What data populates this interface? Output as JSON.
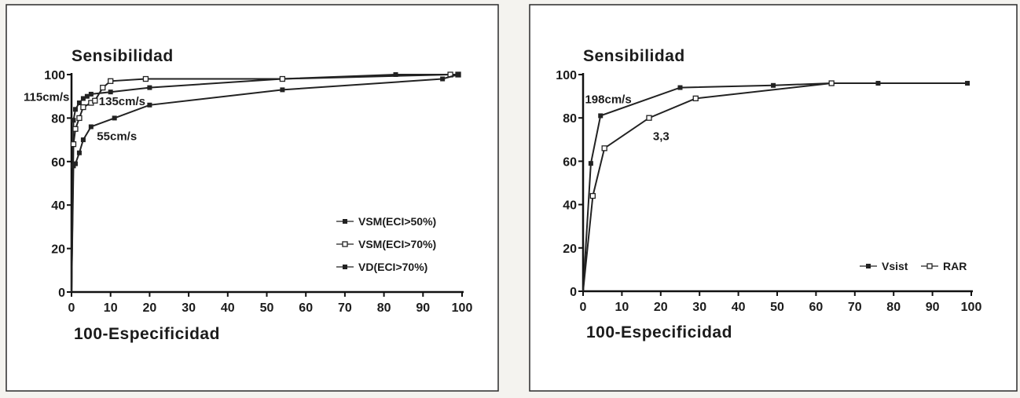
{
  "chart_data": [
    {
      "type": "line",
      "ylabel": "Sensibilidad",
      "xlabel": "100-Especificidad",
      "xlim": [
        0,
        100
      ],
      "ylim": [
        0,
        100
      ],
      "xticks": [
        0,
        10,
        20,
        30,
        40,
        50,
        60,
        70,
        80,
        90,
        100
      ],
      "yticks": [
        0,
        20,
        40,
        60,
        80,
        100
      ],
      "legend_position": "bottom-right",
      "series": [
        {
          "name": "VSM(ECI>50%)",
          "marker": "filled",
          "points": [
            [
              0,
              0
            ],
            [
              0.5,
              79
            ],
            [
              1,
              84
            ],
            [
              2,
              87
            ],
            [
              3,
              89
            ],
            [
              4,
              90
            ],
            [
              5,
              91
            ],
            [
              10,
              92
            ],
            [
              20,
              94
            ],
            [
              54,
              98
            ],
            [
              83,
              100
            ],
            [
              97,
              100
            ],
            [
              99,
              100
            ]
          ]
        },
        {
          "name": "VSM(ECI>70%)",
          "marker": "open",
          "points": [
            [
              0,
              0
            ],
            [
              0.5,
              68
            ],
            [
              1,
              75
            ],
            [
              2,
              80
            ],
            [
              3,
              85
            ],
            [
              5,
              87
            ],
            [
              6,
              88
            ],
            [
              8,
              94
            ],
            [
              10,
              97
            ],
            [
              19,
              98
            ],
            [
              54,
              98
            ],
            [
              97,
              100
            ],
            [
              99,
              100
            ]
          ]
        },
        {
          "name": "VD(ECI>70%)",
          "marker": "filled",
          "points": [
            [
              0,
              0
            ],
            [
              0.5,
              58
            ],
            [
              1,
              59
            ],
            [
              2,
              64
            ],
            [
              3,
              70
            ],
            [
              5,
              76
            ],
            [
              11,
              80
            ],
            [
              20,
              86
            ],
            [
              54,
              93
            ],
            [
              95,
              98
            ],
            [
              99,
              100
            ]
          ]
        }
      ],
      "annotations": [
        {
          "text": "115cm/s",
          "x": 0.5,
          "y": 90
        },
        {
          "text": "135cm/s",
          "x": 7,
          "y": 88
        },
        {
          "text": "55cm/s",
          "x": 6.5,
          "y": 72
        }
      ]
    },
    {
      "type": "line",
      "ylabel": "Sensibilidad",
      "xlabel": "100-Especificidad",
      "xlim": [
        0,
        100
      ],
      "ylim": [
        0,
        100
      ],
      "xticks": [
        0,
        10,
        20,
        30,
        40,
        50,
        60,
        70,
        80,
        90,
        100
      ],
      "yticks": [
        0,
        20,
        40,
        60,
        80,
        100
      ],
      "legend_position": "bottom-right",
      "series": [
        {
          "name": "Vsist",
          "marker": "filled",
          "points": [
            [
              0,
              0
            ],
            [
              2,
              59
            ],
            [
              4.5,
              81
            ],
            [
              25,
              94
            ],
            [
              49,
              95
            ],
            [
              64,
              96
            ],
            [
              76,
              96
            ],
            [
              99,
              96
            ]
          ]
        },
        {
          "name": "RAR",
          "marker": "open",
          "points": [
            [
              0,
              0
            ],
            [
              2.5,
              44
            ],
            [
              5.5,
              66
            ],
            [
              17,
              80
            ],
            [
              29,
              89
            ],
            [
              64,
              96
            ]
          ]
        }
      ],
      "annotations": [
        {
          "text": "198cm/s",
          "x": 0.5,
          "y": 89
        },
        {
          "text": "3,3",
          "x": 18,
          "y": 72
        }
      ]
    }
  ]
}
